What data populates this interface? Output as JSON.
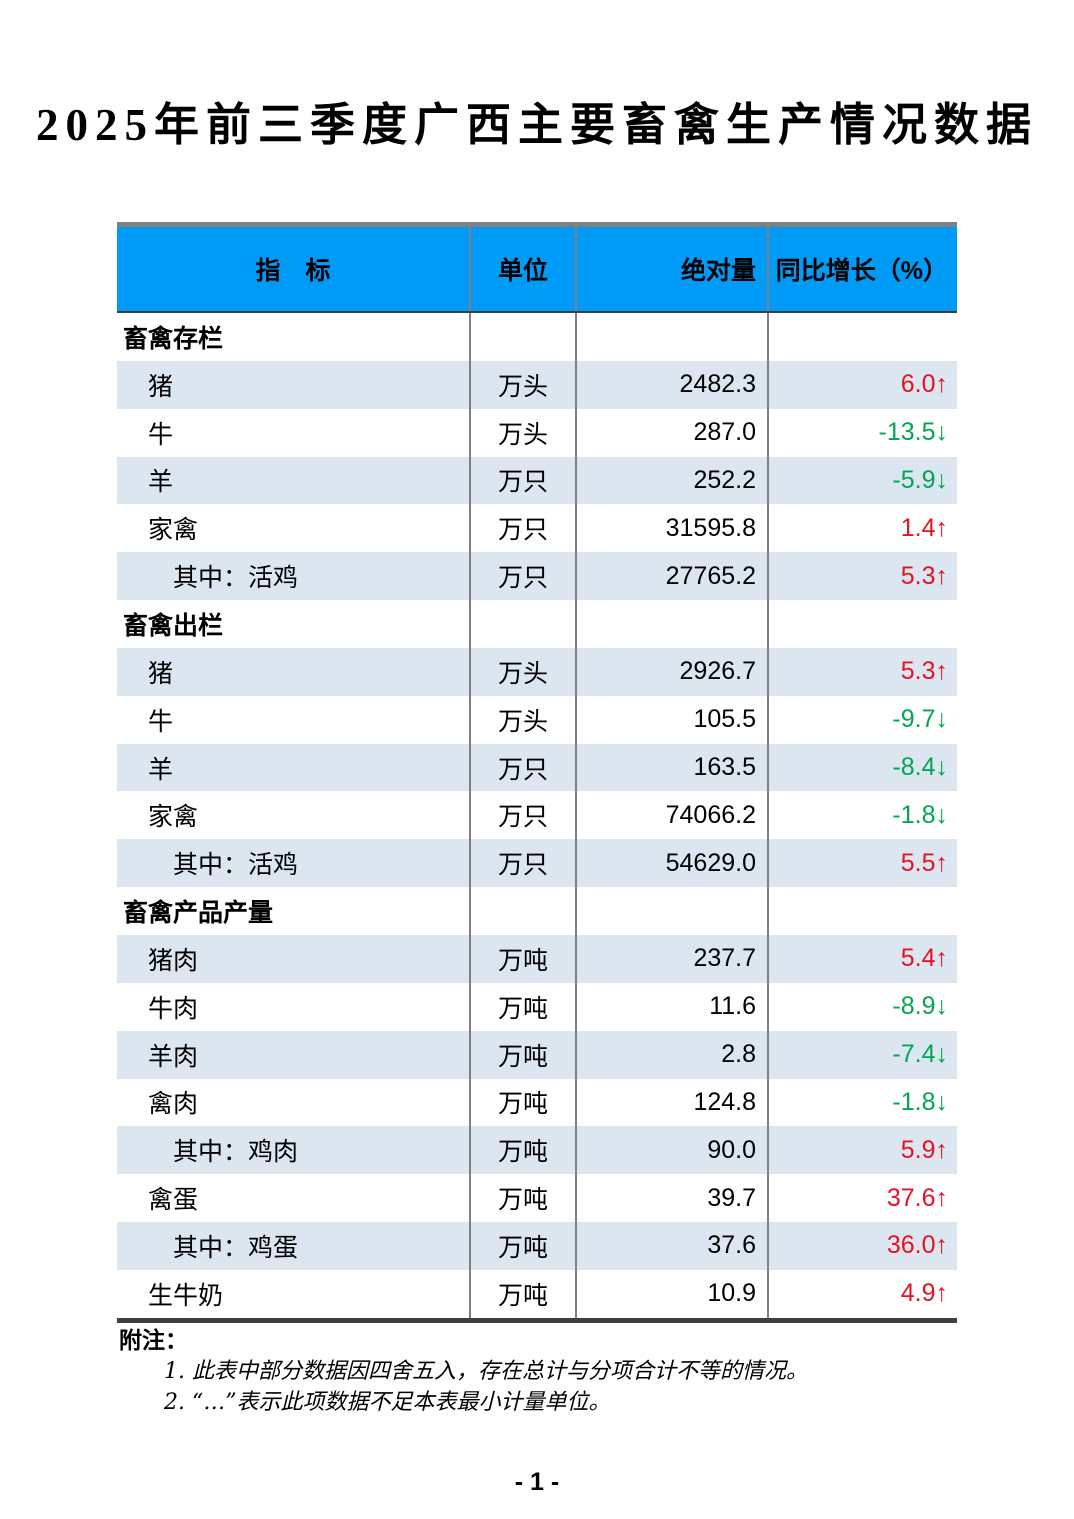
{
  "title": "2025年前三季度广西主要畜禽生产情况数据",
  "table": {
    "headers": [
      "指　标",
      "单位",
      "绝对量",
      "同比增长（%）"
    ],
    "rows": [
      {
        "level": "section",
        "indicator": "畜禽存栏",
        "unit": "",
        "value": "",
        "growth": "",
        "dir": ""
      },
      {
        "level": "item",
        "indicator": "猪",
        "unit": "万头",
        "value": "2482.3",
        "growth": "6.0",
        "dir": "up"
      },
      {
        "level": "item",
        "indicator": "牛",
        "unit": "万头",
        "value": "287.0",
        "growth": "-13.5",
        "dir": "down"
      },
      {
        "level": "item",
        "indicator": "羊",
        "unit": "万只",
        "value": "252.2",
        "growth": "-5.9",
        "dir": "down"
      },
      {
        "level": "item",
        "indicator": "家禽",
        "unit": "万只",
        "value": "31595.8",
        "growth": "1.4",
        "dir": "up"
      },
      {
        "level": "sub",
        "indicator": "其中：活鸡",
        "unit": "万只",
        "value": "27765.2",
        "growth": "5.3",
        "dir": "up"
      },
      {
        "level": "section",
        "indicator": "畜禽出栏",
        "unit": "",
        "value": "",
        "growth": "",
        "dir": ""
      },
      {
        "level": "item",
        "indicator": "猪",
        "unit": "万头",
        "value": "2926.7",
        "growth": "5.3",
        "dir": "up"
      },
      {
        "level": "item",
        "indicator": "牛",
        "unit": "万头",
        "value": "105.5",
        "growth": "-9.7",
        "dir": "down"
      },
      {
        "level": "item",
        "indicator": "羊",
        "unit": "万只",
        "value": "163.5",
        "growth": "-8.4",
        "dir": "down"
      },
      {
        "level": "item",
        "indicator": "家禽",
        "unit": "万只",
        "value": "74066.2",
        "growth": "-1.8",
        "dir": "down"
      },
      {
        "level": "sub",
        "indicator": "其中：活鸡",
        "unit": "万只",
        "value": "54629.0",
        "growth": "5.5",
        "dir": "up"
      },
      {
        "level": "section",
        "indicator": "畜禽产品产量",
        "unit": "",
        "value": "",
        "growth": "",
        "dir": ""
      },
      {
        "level": "item",
        "indicator": "猪肉",
        "unit": "万吨",
        "value": "237.7",
        "growth": "5.4",
        "dir": "up"
      },
      {
        "level": "item",
        "indicator": "牛肉",
        "unit": "万吨",
        "value": "11.6",
        "growth": "-8.9",
        "dir": "down"
      },
      {
        "level": "item",
        "indicator": "羊肉",
        "unit": "万吨",
        "value": "2.8",
        "growth": "-7.4",
        "dir": "down"
      },
      {
        "level": "item",
        "indicator": "禽肉",
        "unit": "万吨",
        "value": "124.8",
        "growth": "-1.8",
        "dir": "down"
      },
      {
        "level": "sub",
        "indicator": "其中：鸡肉",
        "unit": "万吨",
        "value": "90.0",
        "growth": "5.9",
        "dir": "up"
      },
      {
        "level": "item",
        "indicator": "禽蛋",
        "unit": "万吨",
        "value": "39.7",
        "growth": "37.6",
        "dir": "up"
      },
      {
        "level": "sub",
        "indicator": "其中：鸡蛋",
        "unit": "万吨",
        "value": "37.6",
        "growth": "36.0",
        "dir": "up"
      },
      {
        "level": "item",
        "indicator": "生牛奶",
        "unit": "万吨",
        "value": "10.9",
        "growth": "4.9",
        "dir": "up"
      }
    ]
  },
  "icons": {
    "up-arrow-icon": "↑",
    "down-arrow-icon": "↓"
  },
  "notes": {
    "label": "附注：",
    "items": [
      "1. 此表中部分数据因四舍五入，存在总计与分项合计不等的情况。",
      "2. “…”表示此项数据不足本表最小计量单位。"
    ]
  },
  "page_number": "- 1 -",
  "colors": {
    "header_bg": "#009AF7",
    "band_bg": "#DCE6F1",
    "up": "#E81123",
    "down": "#00A652",
    "border_gray": "#808080",
    "border_dark": "#3F3F3F"
  }
}
